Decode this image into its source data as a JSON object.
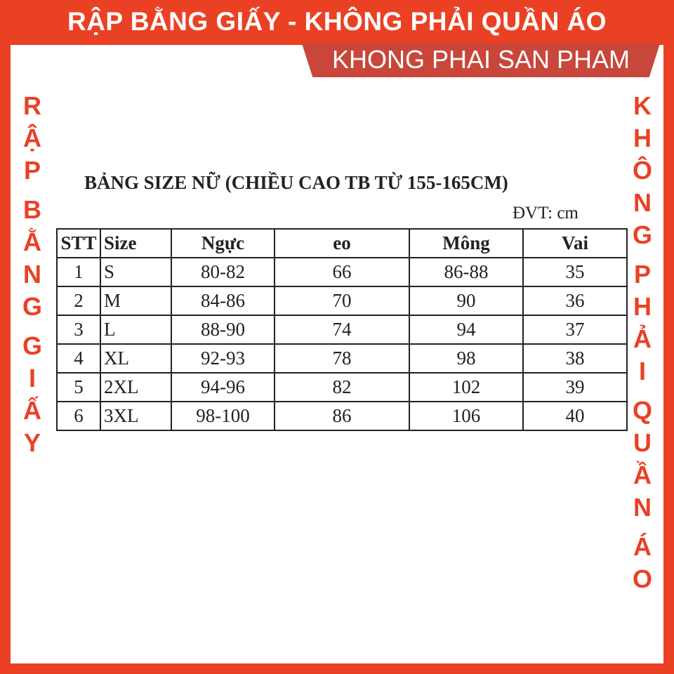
{
  "banner": {
    "headline": "RẬP BẰNG GIẤY - KHÔNG PHẢI QUẦN ÁO",
    "subheadline": "KHONG PHAI SAN PHAM",
    "left_vertical": "RẬP BẰNG GIẤY",
    "right_vertical": "KHÔNG PHẢI QUẦN ÁO",
    "color": "#ea4125"
  },
  "document": {
    "title": "BẢNG SIZE NỮ (CHIỀU CAO TB TỪ 155-165CM)",
    "unit": "ĐVT: cm",
    "headers": [
      "STT",
      "Size",
      "Ngực",
      "eo",
      "Mông",
      "Vai"
    ],
    "rows": [
      [
        "1",
        "S",
        "80-82",
        "66",
        "86-88",
        "35"
      ],
      [
        "2",
        "M",
        "84-86",
        "70",
        "90",
        "36"
      ],
      [
        "3",
        "L",
        "88-90",
        "74",
        "94",
        "37"
      ],
      [
        "4",
        "XL",
        "92-93",
        "78",
        "98",
        "38"
      ],
      [
        "5",
        "2XL",
        "94-96",
        "82",
        "102",
        "39"
      ],
      [
        "6",
        "3XL",
        "98-100",
        "86",
        "106",
        "40"
      ]
    ]
  }
}
